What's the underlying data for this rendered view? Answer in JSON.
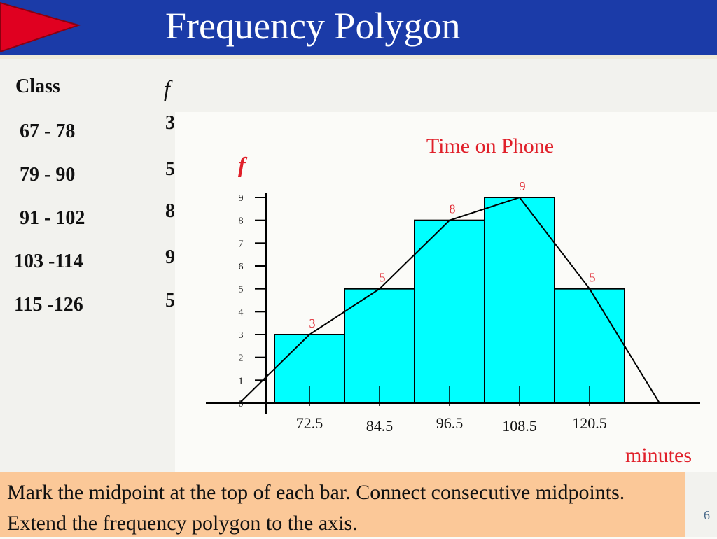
{
  "slide": {
    "title": "Frequency Polygon",
    "instruction": "Mark the midpoint at the top of each bar. Connect consecutive midpoints. Extend the frequency polygon to the axis.",
    "page_number": "6"
  },
  "table": {
    "header_class": "Class",
    "header_f": "f",
    "rows": [
      {
        "class": "67 - 78",
        "f": "3"
      },
      {
        "class": "79 - 90",
        "f": "5"
      },
      {
        "class": "91 - 102",
        "f": "8"
      },
      {
        "class": "103 -114",
        "f": "9"
      },
      {
        "class": "115 -126",
        "f": "5"
      }
    ]
  },
  "chart_data": {
    "type": "bar",
    "title": "Time on Phone",
    "ylabel": "f",
    "xlabel": "minutes",
    "categories": [
      "72.5",
      "84.5",
      "96.5",
      "108.5",
      "120.5"
    ],
    "values": [
      3,
      5,
      8,
      9,
      5
    ],
    "data_labels": [
      "3",
      "5",
      "8",
      "9",
      "5"
    ],
    "y_ticks": [
      "0",
      "1",
      "2",
      "3",
      "4",
      "5",
      "6",
      "7",
      "8",
      "9"
    ],
    "ylim": [
      0,
      9
    ],
    "bar_color": "#00ffff",
    "label_color": "#e0202a",
    "polygon": {
      "type": "line",
      "x": [
        60.5,
        72.5,
        84.5,
        96.5,
        108.5,
        120.5,
        132.5
      ],
      "y": [
        0,
        3,
        5,
        8,
        9,
        5,
        0
      ]
    },
    "grid": false,
    "legend": "none"
  },
  "colors": {
    "title_bar": "#1b3ba8",
    "title_arrow": "#e00020",
    "instruction_bg": "#fbc898"
  }
}
